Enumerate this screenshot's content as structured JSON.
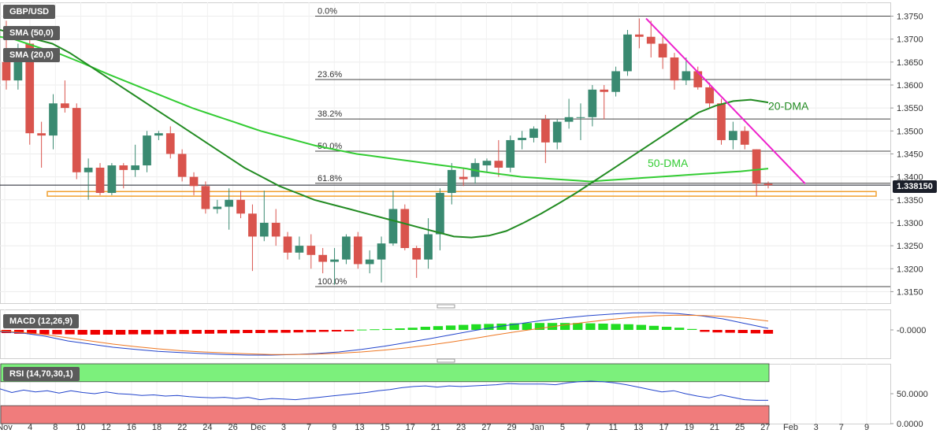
{
  "panels": {
    "main_title": "GBP/USD",
    "sma50_label": "SMA (50,0)",
    "sma20_label": "SMA (20,0)",
    "macd_label": "MACD (12,26,9)",
    "rsi_label": "RSI (14,70,30,1)",
    "last_price": "1.338150"
  },
  "colors": {
    "bull": "#3a8a71",
    "bear": "#d9544d",
    "sma50": "#33cc33",
    "sma20": "#228b22",
    "trendline": "#ee22cc",
    "support_box": "#f0a030",
    "macd_line": "#2244cc",
    "signal_line": "#ee7722",
    "hist_pos": "#22dd22",
    "hist_neg": "#ee0000",
    "rsi_line": "#2244cc",
    "rsi_overbought": "#7cf07c",
    "rsi_oversold": "#f07c7c"
  },
  "chart_data": {
    "type": "candlestick",
    "symbol": "GBP/USD",
    "y_ticks": [
      "1.3750",
      "1.3700",
      "1.3650",
      "1.3600",
      "1.3550",
      "1.3500",
      "1.3450",
      "1.3400",
      "1.3350",
      "1.3300",
      "1.3250",
      "1.3200",
      "1.3150"
    ],
    "ylim": [
      1.3125,
      1.378
    ],
    "x_ticks": [
      "Nov",
      "4",
      "8",
      "10",
      "12",
      "16",
      "18",
      "22",
      "24",
      "26",
      "Dec",
      "3",
      "7",
      "9",
      "13",
      "15",
      "17",
      "21",
      "23",
      "27",
      "29",
      "Jan",
      "5",
      "7",
      "11",
      "13",
      "17",
      "19",
      "21",
      "25",
      "27",
      "Feb",
      "3",
      "7",
      "9"
    ],
    "candles": [
      {
        "o": 1.365,
        "h": 1.374,
        "l": 1.359,
        "c": 1.361
      },
      {
        "o": 1.361,
        "h": 1.369,
        "l": 1.359,
        "c": 1.368
      },
      {
        "o": 1.369,
        "h": 1.37,
        "l": 1.347,
        "c": 1.3495
      },
      {
        "o": 1.3495,
        "h": 1.352,
        "l": 1.342,
        "c": 1.349
      },
      {
        "o": 1.349,
        "h": 1.358,
        "l": 1.346,
        "c": 1.356
      },
      {
        "o": 1.356,
        "h": 1.361,
        "l": 1.354,
        "c": 1.355
      },
      {
        "o": 1.355,
        "h": 1.356,
        "l": 1.3395,
        "c": 1.341
      },
      {
        "o": 1.341,
        "h": 1.344,
        "l": 1.335,
        "c": 1.342
      },
      {
        "o": 1.342,
        "h": 1.343,
        "l": 1.336,
        "c": 1.3365
      },
      {
        "o": 1.3365,
        "h": 1.343,
        "l": 1.336,
        "c": 1.3425
      },
      {
        "o": 1.3425,
        "h": 1.343,
        "l": 1.3375,
        "c": 1.3415
      },
      {
        "o": 1.3415,
        "h": 1.347,
        "l": 1.34,
        "c": 1.3425
      },
      {
        "o": 1.3425,
        "h": 1.35,
        "l": 1.341,
        "c": 1.349
      },
      {
        "o": 1.349,
        "h": 1.35,
        "l": 1.348,
        "c": 1.3495
      },
      {
        "o": 1.3495,
        "h": 1.351,
        "l": 1.344,
        "c": 1.345
      },
      {
        "o": 1.345,
        "h": 1.346,
        "l": 1.339,
        "c": 1.34
      },
      {
        "o": 1.34,
        "h": 1.341,
        "l": 1.336,
        "c": 1.338
      },
      {
        "o": 1.338,
        "h": 1.339,
        "l": 1.332,
        "c": 1.333
      },
      {
        "o": 1.333,
        "h": 1.335,
        "l": 1.332,
        "c": 1.3335
      },
      {
        "o": 1.3335,
        "h": 1.3375,
        "l": 1.3285,
        "c": 1.335
      },
      {
        "o": 1.335,
        "h": 1.337,
        "l": 1.331,
        "c": 1.332
      },
      {
        "o": 1.332,
        "h": 1.334,
        "l": 1.3195,
        "c": 1.327
      },
      {
        "o": 1.327,
        "h": 1.337,
        "l": 1.326,
        "c": 1.33
      },
      {
        "o": 1.33,
        "h": 1.333,
        "l": 1.325,
        "c": 1.327
      },
      {
        "o": 1.327,
        "h": 1.328,
        "l": 1.322,
        "c": 1.3235
      },
      {
        "o": 1.3235,
        "h": 1.327,
        "l": 1.322,
        "c": 1.325
      },
      {
        "o": 1.325,
        "h": 1.3275,
        "l": 1.32,
        "c": 1.323
      },
      {
        "o": 1.323,
        "h": 1.3245,
        "l": 1.319,
        "c": 1.3215
      },
      {
        "o": 1.3215,
        "h": 1.3245,
        "l": 1.3165,
        "c": 1.322
      },
      {
        "o": 1.322,
        "h": 1.3275,
        "l": 1.321,
        "c": 1.327
      },
      {
        "o": 1.327,
        "h": 1.328,
        "l": 1.32,
        "c": 1.321
      },
      {
        "o": 1.321,
        "h": 1.324,
        "l": 1.319,
        "c": 1.322
      },
      {
        "o": 1.322,
        "h": 1.327,
        "l": 1.317,
        "c": 1.3255
      },
      {
        "o": 1.3255,
        "h": 1.337,
        "l": 1.325,
        "c": 1.333
      },
      {
        "o": 1.333,
        "h": 1.334,
        "l": 1.324,
        "c": 1.3245
      },
      {
        "o": 1.3245,
        "h": 1.325,
        "l": 1.318,
        "c": 1.322
      },
      {
        "o": 1.322,
        "h": 1.331,
        "l": 1.32,
        "c": 1.3275
      },
      {
        "o": 1.3275,
        "h": 1.3375,
        "l": 1.324,
        "c": 1.3365
      },
      {
        "o": 1.3365,
        "h": 1.343,
        "l": 1.334,
        "c": 1.3415
      },
      {
        "o": 1.34,
        "h": 1.342,
        "l": 1.338,
        "c": 1.3395
      },
      {
        "o": 1.34,
        "h": 1.344,
        "l": 1.3385,
        "c": 1.343
      },
      {
        "o": 1.3425,
        "h": 1.344,
        "l": 1.341,
        "c": 1.3435
      },
      {
        "o": 1.3435,
        "h": 1.348,
        "l": 1.34,
        "c": 1.342
      },
      {
        "o": 1.342,
        "h": 1.349,
        "l": 1.341,
        "c": 1.348
      },
      {
        "o": 1.348,
        "h": 1.35,
        "l": 1.346,
        "c": 1.3485
      },
      {
        "o": 1.3485,
        "h": 1.351,
        "l": 1.3475,
        "c": 1.3505
      },
      {
        "o": 1.3525,
        "h": 1.3535,
        "l": 1.343,
        "c": 1.3475
      },
      {
        "o": 1.3475,
        "h": 1.3525,
        "l": 1.346,
        "c": 1.352
      },
      {
        "o": 1.352,
        "h": 1.357,
        "l": 1.3505,
        "c": 1.353
      },
      {
        "o": 1.353,
        "h": 1.356,
        "l": 1.348,
        "c": 1.353
      },
      {
        "o": 1.353,
        "h": 1.36,
        "l": 1.351,
        "c": 1.359
      },
      {
        "o": 1.359,
        "h": 1.36,
        "l": 1.3525,
        "c": 1.3585
      },
      {
        "o": 1.3585,
        "h": 1.364,
        "l": 1.3575,
        "c": 1.363
      },
      {
        "o": 1.363,
        "h": 1.372,
        "l": 1.362,
        "c": 1.371
      },
      {
        "o": 1.371,
        "h": 1.3745,
        "l": 1.368,
        "c": 1.3705
      },
      {
        "o": 1.3705,
        "h": 1.374,
        "l": 1.366,
        "c": 1.369
      },
      {
        "o": 1.369,
        "h": 1.3705,
        "l": 1.3635,
        "c": 1.366
      },
      {
        "o": 1.366,
        "h": 1.367,
        "l": 1.359,
        "c": 1.361
      },
      {
        "o": 1.361,
        "h": 1.366,
        "l": 1.36,
        "c": 1.363
      },
      {
        "o": 1.363,
        "h": 1.364,
        "l": 1.359,
        "c": 1.3595
      },
      {
        "o": 1.3595,
        "h": 1.3605,
        "l": 1.355,
        "c": 1.356
      },
      {
        "o": 1.356,
        "h": 1.357,
        "l": 1.347,
        "c": 1.348
      },
      {
        "o": 1.348,
        "h": 1.352,
        "l": 1.346,
        "c": 1.35
      },
      {
        "o": 1.35,
        "h": 1.351,
        "l": 1.346,
        "c": 1.347
      },
      {
        "o": 1.346,
        "h": 1.346,
        "l": 1.3358,
        "c": 1.3385
      },
      {
        "o": 1.3385,
        "h": 1.339,
        "l": 1.3375,
        "c": 1.3382
      }
    ],
    "sma50": [
      1.3705,
      1.37,
      1.369,
      1.368,
      1.3672,
      1.366,
      1.3648,
      1.3635,
      1.3622,
      1.361,
      1.3598,
      1.3586,
      1.3574,
      1.3562,
      1.355,
      1.354,
      1.353,
      1.352,
      1.351,
      1.35,
      1.3492,
      1.3484,
      1.3476,
      1.3468,
      1.3462,
      1.3456,
      1.345,
      1.3446,
      1.3442,
      1.3438,
      1.3434,
      1.343,
      1.3426,
      1.3422,
      1.3418,
      1.3412,
      1.3408,
      1.3404,
      1.34,
      1.3398,
      1.3396,
      1.3394,
      1.3392,
      1.339,
      1.3392,
      1.3394,
      1.3396,
      1.3398,
      1.34,
      1.3402,
      1.3404,
      1.3406,
      1.3408,
      1.341,
      1.3412,
      1.3415,
      1.3418
    ],
    "sma20": [
      1.372,
      1.371,
      1.37,
      1.369,
      1.367,
      1.3645,
      1.362,
      1.3595,
      1.357,
      1.3545,
      1.352,
      1.3495,
      1.347,
      1.3445,
      1.342,
      1.34,
      1.338,
      1.3365,
      1.335,
      1.334,
      1.333,
      1.332,
      1.331,
      1.33,
      1.329,
      1.328,
      1.327,
      1.3268,
      1.3272,
      1.3282,
      1.33,
      1.332,
      1.3342,
      1.3365,
      1.339,
      1.3415,
      1.344,
      1.3465,
      1.349,
      1.3515,
      1.354,
      1.3555,
      1.3565,
      1.3568,
      1.3562
    ],
    "fibonacci": [
      {
        "label": "0.0%",
        "value": 1.375
      },
      {
        "label": "23.6%",
        "value": 1.3612
      },
      {
        "label": "38.2%",
        "value": 1.3526
      },
      {
        "label": "50.0%",
        "value": 1.3456
      },
      {
        "label": "61.8%",
        "value": 1.3386
      },
      {
        "label": "100.0%",
        "value": 1.3161
      }
    ],
    "support_zone": [
      1.3358,
      1.3368
    ],
    "trendline": {
      "from": 1.3745,
      "to": 1.3385
    },
    "annotations": [
      "20-DMA",
      "50-DMA"
    ],
    "macd": {
      "y_tick": "-0.0000",
      "histogram": [
        -0.001,
        -0.0012,
        -0.0013,
        -0.0014,
        -0.0014,
        -0.0014,
        -0.0015,
        -0.0015,
        -0.0015,
        -0.0015,
        -0.0014,
        -0.0014,
        -0.0014,
        -0.0013,
        -0.0013,
        -0.0012,
        -0.0012,
        -0.0011,
        -0.0011,
        -0.001,
        -0.001,
        -0.0009,
        -0.0009,
        -0.0008,
        -0.0007,
        -0.0006,
        -0.0005,
        -0.0004,
        0.0001,
        0.0002,
        0.0003,
        0.0005,
        0.0007,
        0.001,
        0.0012,
        0.0014,
        0.0016,
        0.0018,
        0.0019,
        0.002,
        0.0021,
        0.0022,
        0.0022,
        0.0022,
        0.0022,
        0.0022,
        0.0021,
        0.002,
        0.0019,
        0.0018,
        0.0016,
        0.0013,
        0.001,
        0.0007,
        0.0003,
        -0.0006,
        -0.0008,
        -0.0009,
        -0.001,
        -0.0011,
        -0.0012
      ],
      "macd_line": [
        -0.0005,
        -0.001,
        -0.002,
        -0.0035,
        -0.0045,
        -0.0055,
        -0.0062,
        -0.0068,
        -0.0072,
        -0.0075,
        -0.0078,
        -0.008,
        -0.008,
        -0.0078,
        -0.0075,
        -0.007,
        -0.0062,
        -0.0052,
        -0.004,
        -0.0028,
        -0.0015,
        -0.0002,
        0.001,
        0.002,
        0.003,
        0.0038,
        0.0045,
        0.005,
        0.0054,
        0.0055,
        0.0052,
        0.0045,
        0.0035,
        0.002,
        0.0005
      ],
      "signal_line": [
        -0.0003,
        -0.0008,
        -0.0015,
        -0.0025,
        -0.0035,
        -0.0045,
        -0.0053,
        -0.006,
        -0.0066,
        -0.007,
        -0.0073,
        -0.0076,
        -0.0078,
        -0.0078,
        -0.0077,
        -0.0074,
        -0.007,
        -0.0064,
        -0.0057,
        -0.0048,
        -0.0038,
        -0.0027,
        -0.0015,
        -0.0004,
        0.0006,
        0.0016,
        0.0025,
        0.0033,
        0.004,
        0.0045,
        0.0047,
        0.0046,
        0.0043,
        0.0037,
        0.0028
      ]
    },
    "rsi": {
      "y_ticks": [
        "50.0000",
        "0.0000"
      ],
      "ylim": [
        0,
        100
      ],
      "overbought": 70,
      "oversold": 30,
      "values": [
        58,
        52,
        56,
        53,
        55,
        51,
        55,
        52,
        50,
        53,
        50,
        49,
        47,
        48,
        46,
        47,
        45,
        44,
        43,
        44,
        42,
        44,
        40,
        42,
        41,
        40,
        42,
        44,
        46,
        48,
        50,
        52,
        55,
        57,
        60,
        62,
        63,
        61,
        63,
        62,
        63,
        64,
        65,
        67,
        66,
        66,
        66,
        65,
        68,
        70,
        71,
        70,
        68,
        65,
        61,
        57,
        53,
        55,
        50,
        46,
        43,
        48,
        44,
        40,
        39,
        39
      ]
    }
  }
}
